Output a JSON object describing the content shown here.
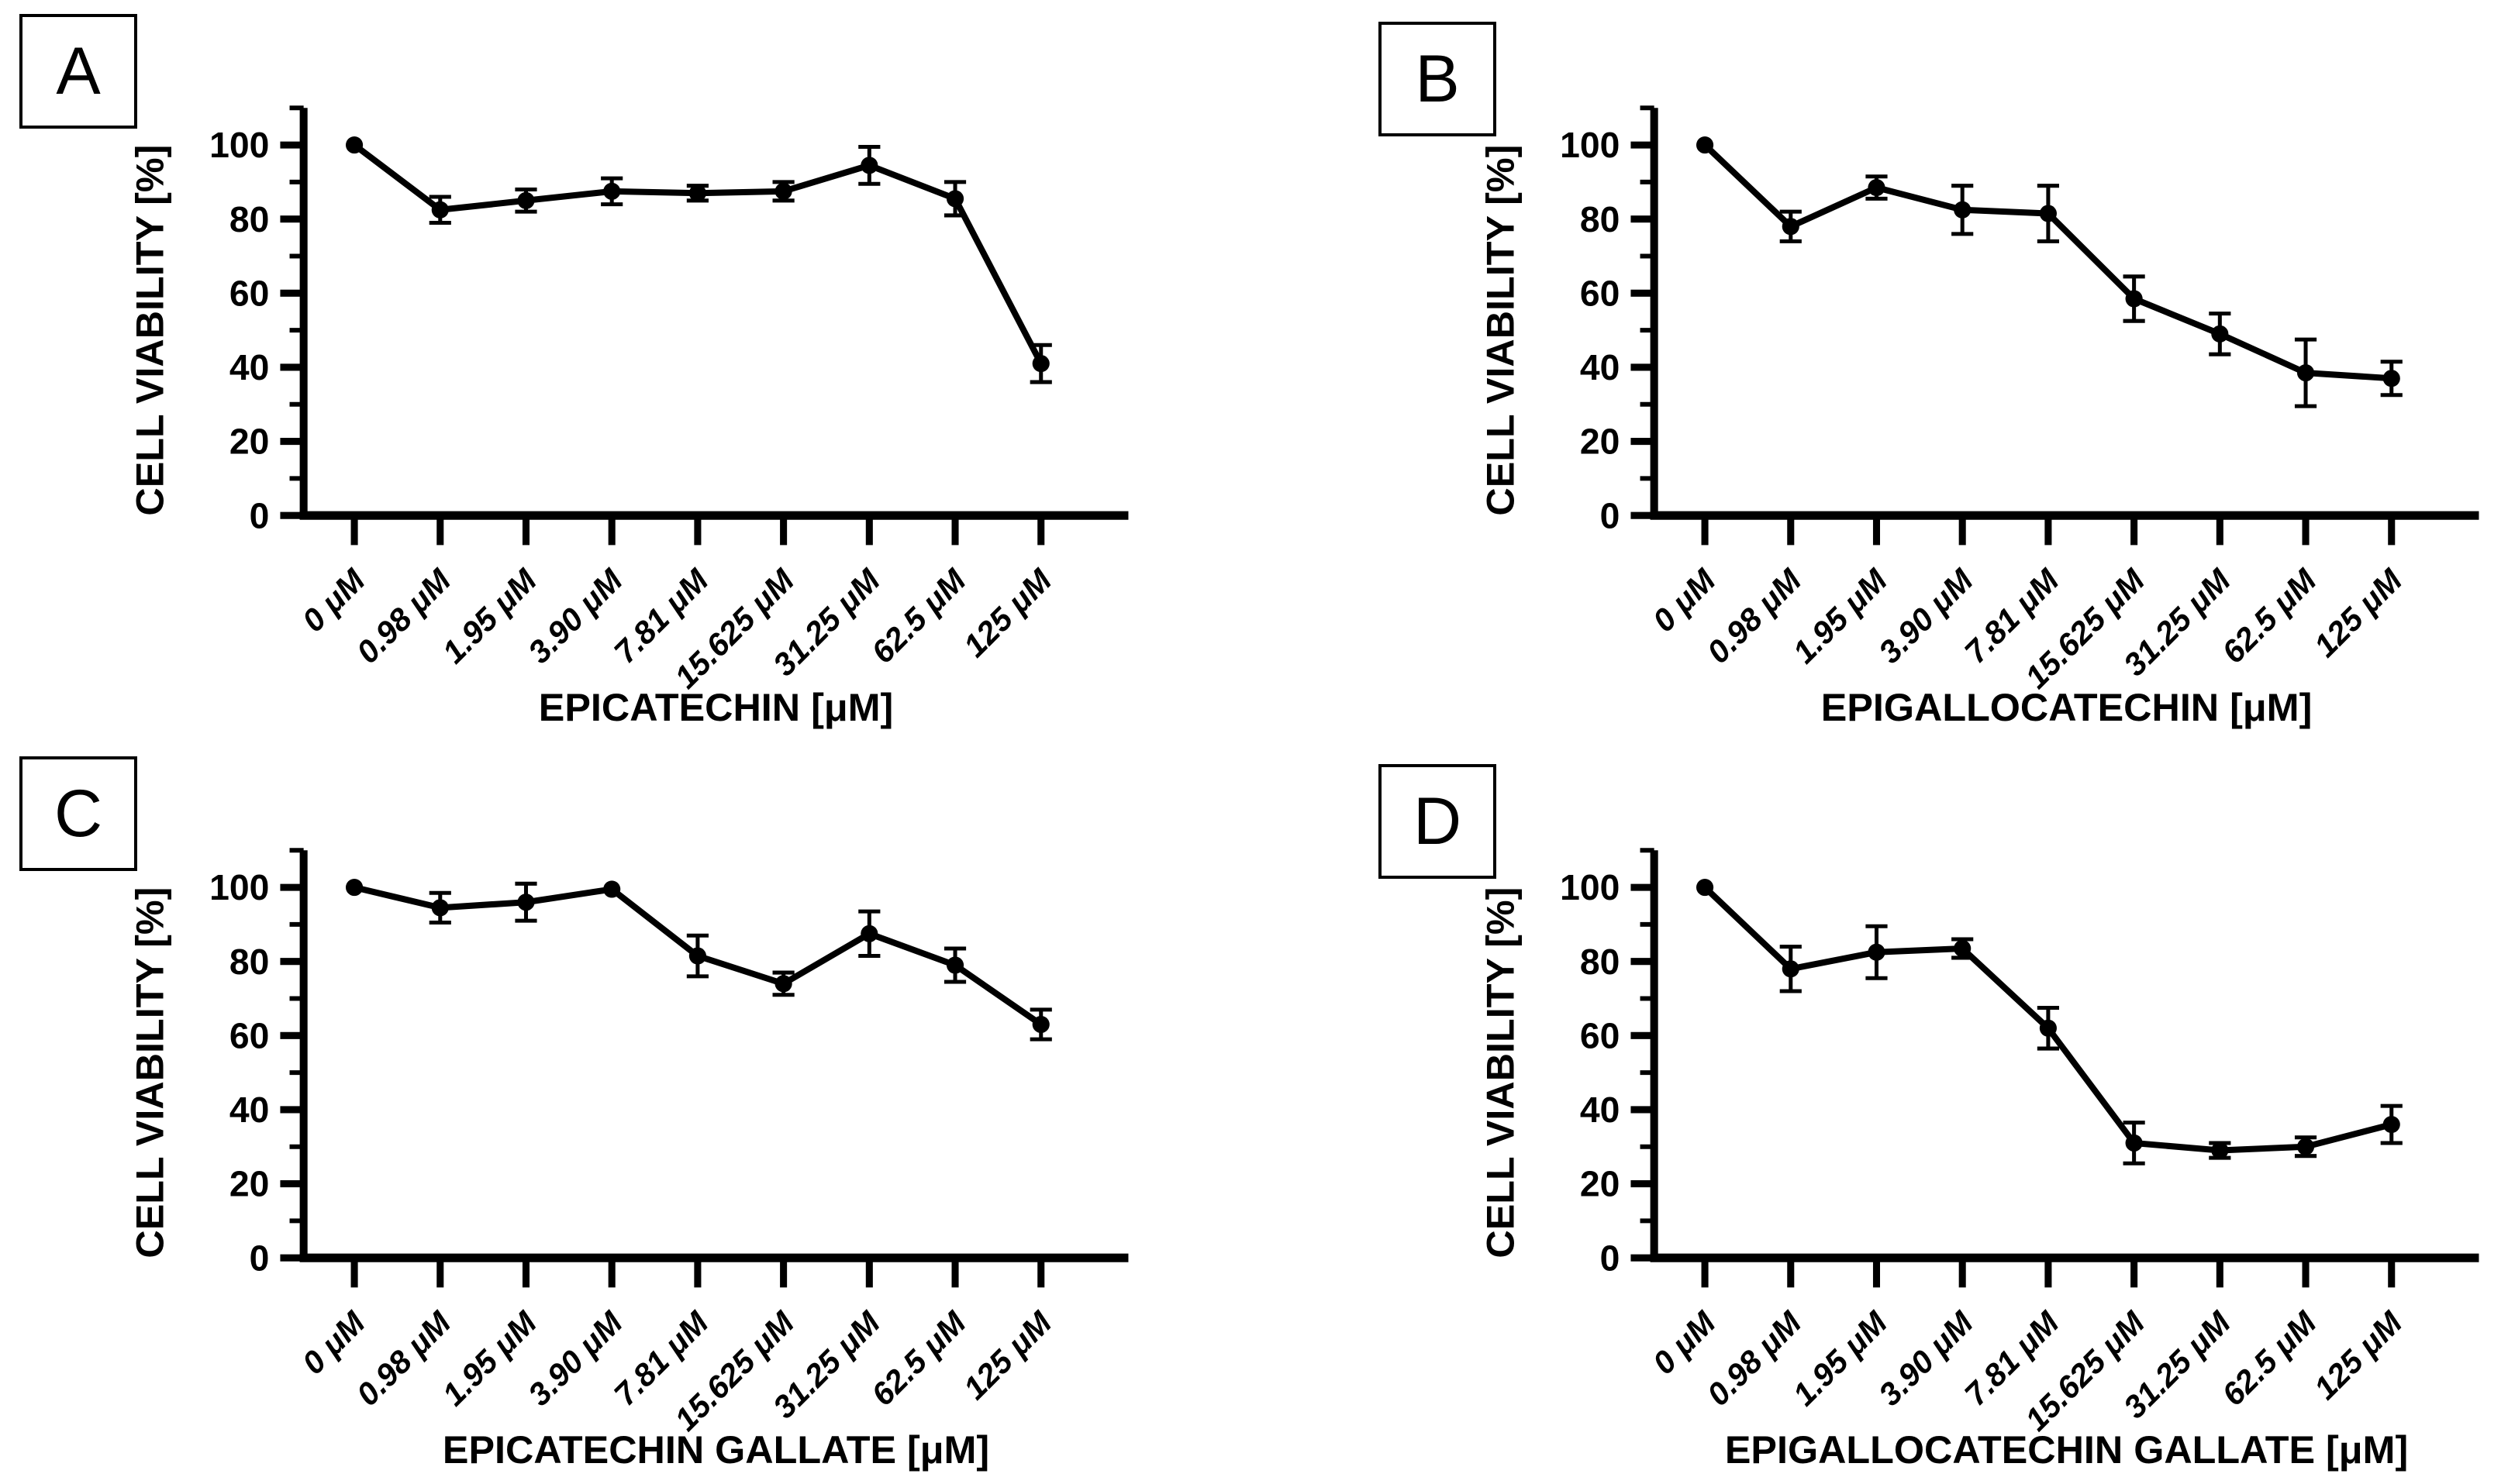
{
  "figure": {
    "ylabel": "CELL VIABILITY [%]",
    "panel_labels": [
      "A",
      "B",
      "C",
      "D"
    ],
    "line_color": "#000000",
    "background_color": "#ffffff"
  },
  "chart_data": [
    {
      "type": "line",
      "panel": "A",
      "xlabel": "EPICATECHIN [μM]",
      "ylabel": "CELL VIABILITY [%]",
      "categories": [
        "0 μM",
        "0.98 μM",
        "1.95 μM",
        "3.90 μM",
        "7.81 μM",
        "15.625 μM",
        "31.25 μM",
        "62.5 μM",
        "125 μM"
      ],
      "values": [
        100,
        82.5,
        85,
        87.5,
        87,
        87.5,
        94.5,
        85.5,
        41
      ],
      "errors": [
        0,
        3.5,
        3,
        3.5,
        2,
        2.5,
        5,
        4.5,
        5
      ],
      "ylim": [
        0,
        110
      ],
      "yticks": [
        0,
        20,
        40,
        60,
        80,
        100
      ],
      "minor_ytick_step": 10,
      "marker": "filled-circle",
      "error_bars": "symmetric-sd",
      "grid": false,
      "legend": "none"
    },
    {
      "type": "line",
      "panel": "B",
      "xlabel": "EPIGALLOCATECHIN [μM]",
      "ylabel": "CELL VIABILITY [%]",
      "categories": [
        "0 μM",
        "0.98 μM",
        "1.95 μM",
        "3.90 μM",
        "7.81 μM",
        "15.625 μM",
        "31.25 μM",
        "62.5 μM",
        "125 μM"
      ],
      "values": [
        100,
        78,
        88.5,
        82.5,
        81.5,
        58.5,
        49,
        38.5,
        37
      ],
      "errors": [
        0,
        4,
        3,
        6.5,
        7.5,
        6,
        5.5,
        9,
        4.5
      ],
      "ylim": [
        0,
        110
      ],
      "yticks": [
        0,
        20,
        40,
        60,
        80,
        100
      ],
      "minor_ytick_step": 10,
      "marker": "filled-circle",
      "error_bars": "symmetric-sd",
      "grid": false,
      "legend": "none"
    },
    {
      "type": "line",
      "panel": "C",
      "xlabel": "EPICATECHIN GALLATE [μM]",
      "ylabel": "CELL VIABILITY [%]",
      "categories": [
        "0 μM",
        "0.98 μM",
        "1.95 μM",
        "3.90 μM",
        "7.81 μM",
        "15.625 μM",
        "31.25 μM",
        "62.5 μM",
        "125 μM"
      ],
      "values": [
        100,
        94.5,
        96,
        99.5,
        81.5,
        74,
        87.5,
        79,
        63
      ],
      "errors": [
        0,
        4,
        5,
        0,
        5.5,
        3,
        6,
        4.5,
        4
      ],
      "ylim": [
        0,
        110
      ],
      "yticks": [
        0,
        20,
        40,
        60,
        80,
        100
      ],
      "minor_ytick_step": 10,
      "marker": "filled-circle",
      "error_bars": "symmetric-sd",
      "grid": false,
      "legend": "none"
    },
    {
      "type": "line",
      "panel": "D",
      "xlabel": "EPIGALLOCATECHIN GALLATE [μM]",
      "ylabel": "CELL VIABILITY [%]",
      "categories": [
        "0 μM",
        "0.98 μM",
        "1.95 μM",
        "3.90 μM",
        "7.81 μM",
        "15.625 μM",
        "31.25 μM",
        "62.5 μM",
        "125 μM"
      ],
      "values": [
        100,
        78,
        82.5,
        83.5,
        62,
        31,
        29,
        30,
        36
      ],
      "errors": [
        0,
        6,
        7,
        2.5,
        5.5,
        5.5,
        2,
        2.5,
        5
      ],
      "ylim": [
        0,
        110
      ],
      "yticks": [
        0,
        20,
        40,
        60,
        80,
        100
      ],
      "minor_ytick_step": 10,
      "marker": "filled-circle",
      "error_bars": "symmetric-sd",
      "grid": false,
      "legend": "none"
    }
  ]
}
